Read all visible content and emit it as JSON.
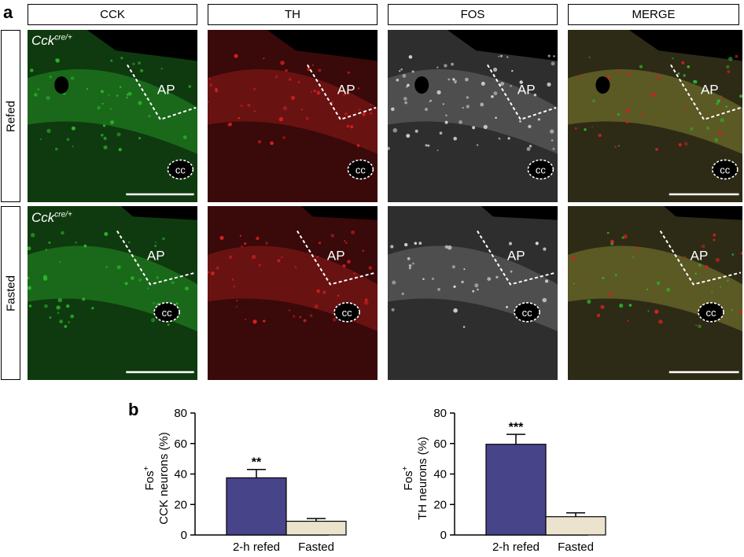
{
  "figure": {
    "panel_a_letter": "a",
    "panel_b_letter": "b",
    "columns": [
      "CCK",
      "TH",
      "FOS",
      "MERGE"
    ],
    "rows": [
      "Refed",
      "Fasted"
    ],
    "genotype_base": "Cck",
    "genotype_sup": "cre/+",
    "region_labels": {
      "ap": "AP",
      "cc": "cc"
    },
    "colors": {
      "cck_channel": "#2bb52b",
      "th_channel": "#d42020",
      "fos_channel": "#d8d8d8",
      "bar_refed": "#47448a",
      "bar_fasted": "#ece3cf"
    }
  },
  "chart_data": [
    {
      "type": "bar",
      "categories": [
        "2-h refed",
        "Fasted"
      ],
      "values": [
        37.5,
        9
      ],
      "errors": [
        5.5,
        1.8
      ],
      "significance": [
        "**",
        ""
      ],
      "ylabel_top": "Fos",
      "ylabel_sup": "+",
      "ylabel_bottom": "CCK neurons (%)",
      "ylim": [
        0,
        80
      ],
      "yticks": [
        0,
        20,
        40,
        60,
        80
      ],
      "colors": [
        "#47448a",
        "#ece3cf"
      ]
    },
    {
      "type": "bar",
      "categories": [
        "2-h refed",
        "Fasted"
      ],
      "values": [
        59.5,
        12
      ],
      "errors": [
        6.5,
        2.5
      ],
      "significance": [
        "***",
        ""
      ],
      "ylabel_top": "Fos",
      "ylabel_sup": "+",
      "ylabel_bottom": "TH neurons (%)",
      "ylim": [
        0,
        80
      ],
      "yticks": [
        0,
        20,
        40,
        60,
        80
      ],
      "colors": [
        "#47448a",
        "#ece3cf"
      ]
    }
  ]
}
